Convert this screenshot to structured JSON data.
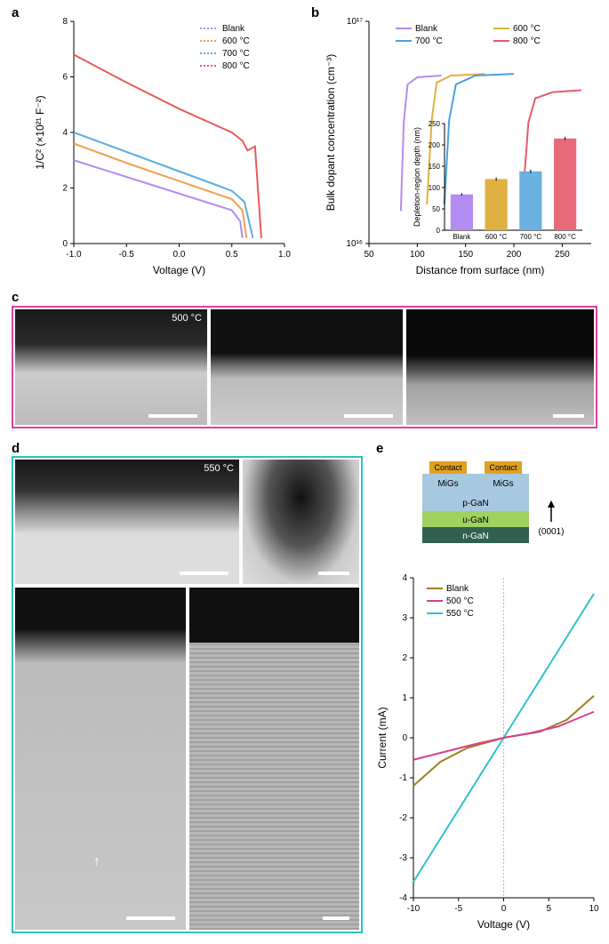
{
  "panel_a": {
    "label": "a",
    "type": "line",
    "x_label": "Voltage (V)",
    "y_label": "1/C² (×10²¹ F⁻²)",
    "xlim": [
      -1.0,
      1.0
    ],
    "ylim": [
      0,
      8
    ],
    "xticks": [
      -1.0,
      -0.5,
      0,
      0.5,
      1.0
    ],
    "yticks": [
      0,
      2,
      4,
      6,
      8
    ],
    "legend": [
      {
        "label": "Blank",
        "color": "#b28cf0",
        "dash": "dotted"
      },
      {
        "label": "600 °C",
        "color": "#f0a050",
        "dash": "dotted"
      },
      {
        "label": "700 °C",
        "color": "#5ab0e0",
        "dash": "dotted"
      },
      {
        "label": "800 °C",
        "color": "#e85a5a",
        "dash": "dotted"
      }
    ],
    "series": [
      {
        "name": "Blank",
        "color": "#b28cf0",
        "points": [
          [
            -1.0,
            3.0
          ],
          [
            -0.5,
            2.4
          ],
          [
            0.0,
            1.8
          ],
          [
            0.5,
            1.2
          ],
          [
            0.58,
            0.8
          ],
          [
            0.6,
            0.2
          ]
        ]
      },
      {
        "name": "600",
        "color": "#f0a050",
        "points": [
          [
            -1.0,
            3.6
          ],
          [
            -0.5,
            2.9
          ],
          [
            0.0,
            2.25
          ],
          [
            0.5,
            1.6
          ],
          [
            0.6,
            1.2
          ],
          [
            0.64,
            0.2
          ]
        ]
      },
      {
        "name": "700",
        "color": "#5ab0e0",
        "points": [
          [
            -1.0,
            4.0
          ],
          [
            -0.5,
            3.3
          ],
          [
            0.0,
            2.6
          ],
          [
            0.5,
            1.9
          ],
          [
            0.62,
            1.5
          ],
          [
            0.7,
            0.2
          ]
        ]
      },
      {
        "name": "800",
        "color": "#e85a5a",
        "points": [
          [
            -1.0,
            6.8
          ],
          [
            -0.5,
            5.8
          ],
          [
            0.0,
            4.85
          ],
          [
            0.5,
            4.0
          ],
          [
            0.6,
            3.7
          ],
          [
            0.65,
            3.35
          ],
          [
            0.72,
            3.5
          ],
          [
            0.78,
            0.2
          ]
        ]
      }
    ],
    "background": "#ffffff",
    "axis_color": "#000000",
    "label_fontsize": 12,
    "tick_fontsize": 10
  },
  "panel_b": {
    "label": "b",
    "type": "line_log",
    "x_label": "Distance from surface (nm)",
    "y_label": "Bulk dopant concentration (cm⁻³)",
    "xlim": [
      50,
      280
    ],
    "ylim_log": [
      1e+16,
      1e+17
    ],
    "xticks": [
      50,
      100,
      150,
      200,
      250
    ],
    "yticks_labels": [
      "10¹⁶",
      "10¹⁷"
    ],
    "legend": [
      {
        "label": "Blank",
        "color": "#b28cf0"
      },
      {
        "label": "600 °C",
        "color": "#e0b040"
      },
      {
        "label": "700 °C",
        "color": "#4aa0e0"
      },
      {
        "label": "800 °C",
        "color": "#e85a6a"
      }
    ],
    "series": [
      {
        "name": "Blank",
        "color": "#b28cf0",
        "points": [
          [
            83,
            1.4e+16
          ],
          [
            86,
            3.5e+16
          ],
          [
            90,
            5.2e+16
          ],
          [
            100,
            5.6e+16
          ],
          [
            125,
            5.7e+16
          ]
        ]
      },
      {
        "name": "600",
        "color": "#e0b040",
        "points": [
          [
            110,
            1.5e+16
          ],
          [
            115,
            3.6e+16
          ],
          [
            120,
            5.3e+16
          ],
          [
            135,
            5.7e+16
          ],
          [
            170,
            5.8e+16
          ]
        ]
      },
      {
        "name": "700",
        "color": "#4aa0e0",
        "points": [
          [
            128,
            1.5e+16
          ],
          [
            133,
            3.6e+16
          ],
          [
            140,
            5.2e+16
          ],
          [
            160,
            5.7e+16
          ],
          [
            200,
            5.8e+16
          ]
        ]
      },
      {
        "name": "800",
        "color": "#e85a6a",
        "points": [
          [
            210,
            1.8e+16
          ],
          [
            215,
            3.5e+16
          ],
          [
            222,
            4.5e+16
          ],
          [
            240,
            4.8e+16
          ],
          [
            270,
            4.9e+16
          ]
        ]
      }
    ],
    "inset": {
      "type": "bar",
      "y_label": "Depletion-region depth (nm)",
      "categories": [
        "Blank",
        "600 °C",
        "700 °C",
        "800 °C"
      ],
      "values": [
        84,
        120,
        138,
        215
      ],
      "errors": [
        3,
        4,
        4,
        4
      ],
      "colors": [
        "#b28cf0",
        "#e0b040",
        "#6ab0e0",
        "#e86a7a"
      ],
      "ylim": [
        0,
        250
      ],
      "yticks": [
        0,
        50,
        100,
        150,
        200,
        250
      ],
      "bar_width": 0.65,
      "label_fontsize": 9,
      "tick_fontsize": 8
    },
    "label_fontsize": 12,
    "tick_fontsize": 10
  },
  "panel_c": {
    "label": "c",
    "border_color": "#e040a0",
    "temp_label": "500 °C",
    "scale_bar_color": "#ffffff",
    "images": 3
  },
  "panel_d": {
    "label": "d",
    "border_color": "#30c0c0",
    "temp_label": "550 °C",
    "scale_bar_color": "#ffffff",
    "images": 4
  },
  "panel_e": {
    "label": "e",
    "schematic": {
      "layers": [
        {
          "label": "Contact",
          "color": "#e0a020",
          "shape": "pad"
        },
        {
          "label": "MiGs",
          "color": "#a8c8e0"
        },
        {
          "label": "p-GaN",
          "color": "#a8c8e0"
        },
        {
          "label": "u-GaN",
          "color": "#a0d060"
        },
        {
          "label": "n-GaN",
          "color": "#306050"
        }
      ],
      "crystal_dir": "(0001)"
    },
    "chart": {
      "type": "line",
      "x_label": "Voltage (V)",
      "y_label": "Current (mA)",
      "xlim": [
        -10,
        10
      ],
      "ylim": [
        -4,
        4
      ],
      "xticks": [
        -10,
        -5,
        0,
        5,
        10
      ],
      "yticks": [
        -4,
        -3,
        -2,
        -1,
        0,
        1,
        2,
        3,
        4
      ],
      "legend": [
        {
          "label": "Blank",
          "color": "#a08020"
        },
        {
          "label": "500 °C",
          "color": "#d84090"
        },
        {
          "label": "550 °C",
          "color": "#30c0d0"
        }
      ],
      "series": [
        {
          "name": "550",
          "color": "#30c0d0",
          "points": [
            [
              -10,
              -3.6
            ],
            [
              -5,
              -1.8
            ],
            [
              0,
              0
            ],
            [
              5,
              1.8
            ],
            [
              10,
              3.6
            ]
          ]
        },
        {
          "name": "Blank",
          "color": "#a08020",
          "points": [
            [
              -10,
              -1.2
            ],
            [
              -7,
              -0.6
            ],
            [
              -4,
              -0.25
            ],
            [
              0,
              0
            ],
            [
              4,
              0.15
            ],
            [
              7,
              0.45
            ],
            [
              10,
              1.05
            ]
          ]
        },
        {
          "name": "500",
          "color": "#d84090",
          "points": [
            [
              -10,
              -0.55
            ],
            [
              -6,
              -0.32
            ],
            [
              -3,
              -0.15
            ],
            [
              0,
              0
            ],
            [
              3,
              0.12
            ],
            [
              6,
              0.28
            ],
            [
              10,
              0.65
            ]
          ]
        }
      ],
      "zero_line_color": "#bbbbbb",
      "label_fontsize": 12,
      "tick_fontsize": 10
    }
  }
}
